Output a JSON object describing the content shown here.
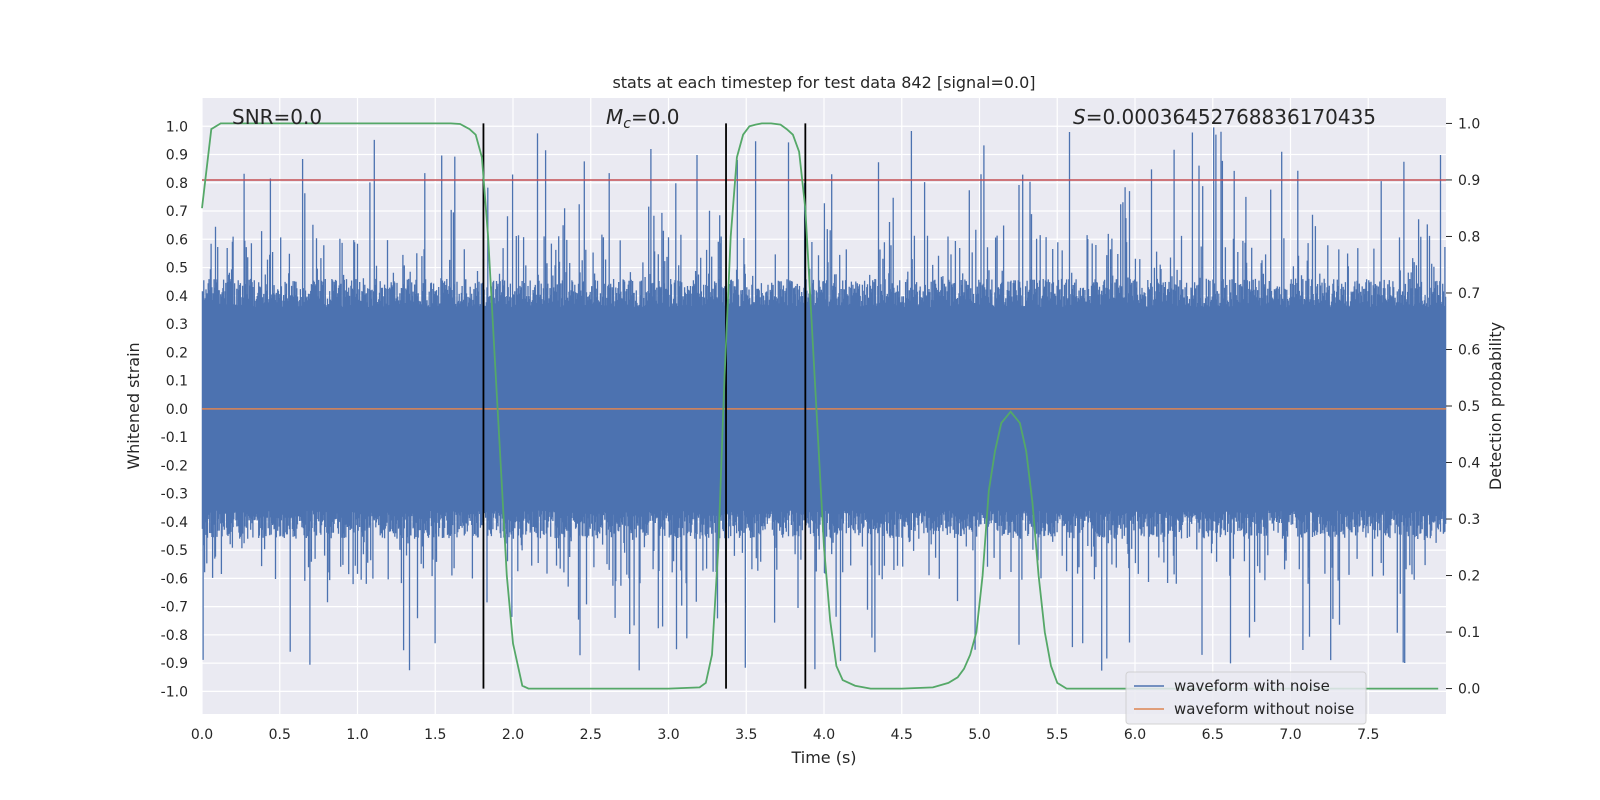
{
  "chart_data": {
    "type": "line",
    "title": "stats at each timestep for test data 842 [signal=0.0]",
    "xlabel": "Time (s)",
    "ylabel_left": "Whitened strain",
    "ylabel_right": "Detection probability",
    "xlim": [
      0.0,
      8.0
    ],
    "ylim_left": [
      -1.08,
      1.1
    ],
    "ylim_right": [
      -0.045,
      1.045
    ],
    "x_ticks": [
      "0.0",
      "0.5",
      "1.0",
      "1.5",
      "2.0",
      "2.5",
      "3.0",
      "3.5",
      "4.0",
      "4.5",
      "5.0",
      "5.5",
      "6.0",
      "6.5",
      "7.0",
      "7.5"
    ],
    "y_left_ticks": [
      "1.0",
      "0.9",
      "0.8",
      "0.7",
      "0.6",
      "0.5",
      "0.4",
      "0.3",
      "0.2",
      "0.1",
      "0.0",
      "-0.1",
      "-0.2",
      "-0.3",
      "-0.4",
      "-0.5",
      "-0.6",
      "-0.7",
      "-0.8",
      "-0.9",
      "-1.0"
    ],
    "y_right_ticks": [
      "1.0",
      "0.9",
      "0.8",
      "0.7",
      "0.6",
      "0.5",
      "0.4",
      "0.3",
      "0.2",
      "0.1",
      "0.0"
    ],
    "annotations": {
      "snr": "SNR=0.0",
      "mc_symbol": "M",
      "mc_sub": "c",
      "mc_value": "=0.0",
      "s_symbol": "S",
      "s_value": "=0.00036452768836170435"
    },
    "threshold": {
      "value": 0.9,
      "axis": "right",
      "color": "#c44e52"
    },
    "vertical_lines": [
      1.81,
      3.37,
      3.88
    ],
    "series": [
      {
        "name": "waveform with noise",
        "color": "#4c72b0",
        "kind": "noise",
        "core_amplitude": 0.4,
        "peak_min": -0.94,
        "peak_max": 1.0
      },
      {
        "name": "waveform without noise",
        "color": "#dd8452",
        "kind": "flat",
        "value": 0.0
      },
      {
        "name": "detection probability",
        "color": "#55a868",
        "axis": "right",
        "x": [
          0.0,
          0.06,
          0.12,
          0.2,
          0.4,
          0.8,
          1.2,
          1.5,
          1.6,
          1.66,
          1.72,
          1.76,
          1.8,
          1.84,
          1.88,
          1.92,
          1.96,
          2.0,
          2.06,
          2.1,
          2.5,
          3.0,
          3.2,
          3.24,
          3.28,
          3.32,
          3.36,
          3.4,
          3.44,
          3.48,
          3.52,
          3.56,
          3.6,
          3.66,
          3.72,
          3.76,
          3.8,
          3.84,
          3.88,
          3.92,
          3.96,
          4.0,
          4.04,
          4.08,
          4.12,
          4.2,
          4.3,
          4.5,
          4.7,
          4.8,
          4.86,
          4.9,
          4.94,
          4.98,
          5.02,
          5.06,
          5.1,
          5.14,
          5.2,
          5.26,
          5.3,
          5.34,
          5.38,
          5.42,
          5.46,
          5.5,
          5.56,
          5.6,
          6.0,
          7.0,
          7.95
        ],
        "y": [
          0.85,
          0.99,
          1.0,
          1.0,
          1.0,
          1.0,
          1.0,
          1.0,
          1.0,
          0.999,
          0.99,
          0.98,
          0.94,
          0.8,
          0.6,
          0.4,
          0.2,
          0.08,
          0.005,
          0.0,
          0.0,
          0.0,
          0.002,
          0.01,
          0.06,
          0.25,
          0.55,
          0.8,
          0.94,
          0.98,
          0.995,
          0.998,
          1.0,
          1.0,
          0.998,
          0.99,
          0.98,
          0.95,
          0.85,
          0.65,
          0.45,
          0.25,
          0.12,
          0.04,
          0.015,
          0.005,
          0.0,
          0.0,
          0.002,
          0.01,
          0.02,
          0.035,
          0.06,
          0.1,
          0.2,
          0.35,
          0.42,
          0.47,
          0.49,
          0.47,
          0.42,
          0.33,
          0.2,
          0.1,
          0.04,
          0.01,
          0.0,
          0.0,
          0.0,
          0.0,
          0.0
        ]
      }
    ],
    "legend": {
      "position": "lower-right",
      "entries": [
        "waveform with noise",
        "waveform without noise"
      ]
    },
    "grid": true
  }
}
